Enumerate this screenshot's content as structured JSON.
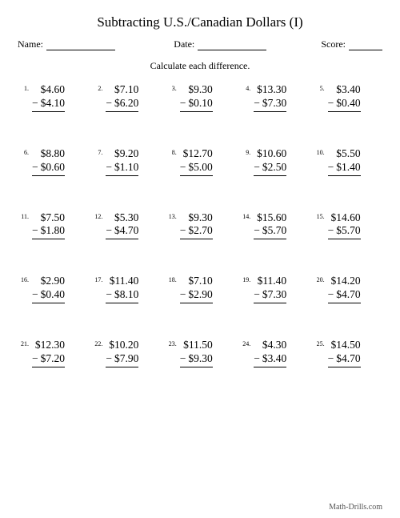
{
  "title": "Subtracting U.S./Canadian Dollars (I)",
  "meta": {
    "name_label": "Name:",
    "date_label": "Date:",
    "score_label": "Score:"
  },
  "instruction": "Calculate each difference.",
  "minus_sign": "−",
  "problems": [
    {
      "n": "1.",
      "top": "$4.60",
      "bot": "$4.10"
    },
    {
      "n": "2.",
      "top": "$7.10",
      "bot": "$6.20"
    },
    {
      "n": "3.",
      "top": "$9.30",
      "bot": "$0.10"
    },
    {
      "n": "4.",
      "top": "$13.30",
      "bot": "$7.30"
    },
    {
      "n": "5.",
      "top": "$3.40",
      "bot": "$0.40"
    },
    {
      "n": "6.",
      "top": "$8.80",
      "bot": "$0.60"
    },
    {
      "n": "7.",
      "top": "$9.20",
      "bot": "$1.10"
    },
    {
      "n": "8.",
      "top": "$12.70",
      "bot": "$5.00"
    },
    {
      "n": "9.",
      "top": "$10.60",
      "bot": "$2.50"
    },
    {
      "n": "10.",
      "top": "$5.50",
      "bot": "$1.40"
    },
    {
      "n": "11.",
      "top": "$7.50",
      "bot": "$1.80"
    },
    {
      "n": "12.",
      "top": "$5.30",
      "bot": "$4.70"
    },
    {
      "n": "13.",
      "top": "$9.30",
      "bot": "$2.70"
    },
    {
      "n": "14.",
      "top": "$15.60",
      "bot": "$5.70"
    },
    {
      "n": "15.",
      "top": "$14.60",
      "bot": "$5.70"
    },
    {
      "n": "16.",
      "top": "$2.90",
      "bot": "$0.40"
    },
    {
      "n": "17.",
      "top": "$11.40",
      "bot": "$8.10"
    },
    {
      "n": "18.",
      "top": "$7.10",
      "bot": "$2.90"
    },
    {
      "n": "19.",
      "top": "$11.40",
      "bot": "$7.30"
    },
    {
      "n": "20.",
      "top": "$14.20",
      "bot": "$4.70"
    },
    {
      "n": "21.",
      "top": "$12.30",
      "bot": "$7.20"
    },
    {
      "n": "22.",
      "top": "$10.20",
      "bot": "$7.90"
    },
    {
      "n": "23.",
      "top": "$11.50",
      "bot": "$9.30"
    },
    {
      "n": "24.",
      "top": "$4.30",
      "bot": "$3.40"
    },
    {
      "n": "25.",
      "top": "$14.50",
      "bot": "$4.70"
    }
  ],
  "footer": "Math-Drills.com"
}
